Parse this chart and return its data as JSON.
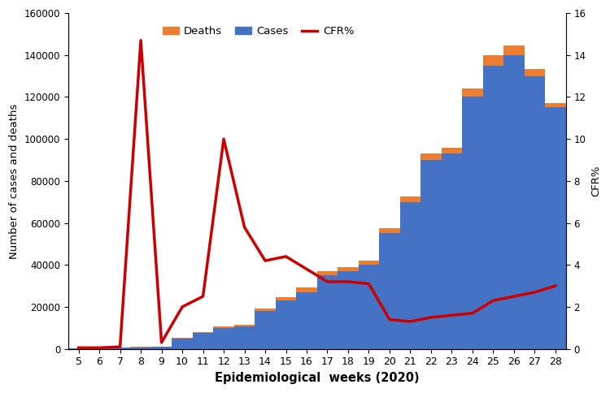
{
  "weeks": [
    5,
    6,
    7,
    8,
    9,
    10,
    11,
    12,
    13,
    14,
    15,
    16,
    17,
    18,
    19,
    20,
    21,
    22,
    23,
    24,
    25,
    26,
    27,
    28
  ],
  "cases": [
    200,
    300,
    500,
    800,
    1000,
    5000,
    7500,
    10000,
    10500,
    18000,
    23000,
    27000,
    35000,
    37000,
    40000,
    55000,
    70000,
    90000,
    93000,
    120000,
    135000,
    140000,
    130000,
    115000
  ],
  "deaths": [
    10,
    15,
    20,
    50,
    100,
    300,
    500,
    700,
    800,
    1200,
    1800,
    2200,
    2000,
    2000,
    2000,
    2500,
    2500,
    3000,
    3000,
    4000,
    5000,
    4500,
    3500,
    2000
  ],
  "cfr": [
    0.05,
    0.05,
    0.1,
    14.7,
    0.3,
    2.0,
    2.5,
    10.0,
    5.8,
    4.2,
    4.4,
    3.8,
    3.2,
    3.2,
    3.1,
    1.4,
    1.3,
    1.5,
    1.6,
    1.7,
    2.3,
    2.5,
    2.7,
    3.0
  ],
  "bar_color_cases": "#4472C4",
  "bar_color_deaths": "#ED7D31",
  "line_color": "#CC0000",
  "xlabel": "Epidemiological  weeks (2020)",
  "ylabel_left": "Number of cases and deaths",
  "ylabel_right": "CFR%",
  "ylim_left": [
    0,
    160000
  ],
  "ylim_right": [
    0,
    16
  ],
  "yticks_left": [
    0,
    20000,
    40000,
    60000,
    80000,
    100000,
    120000,
    140000,
    160000
  ],
  "yticks_right": [
    0,
    2,
    4,
    6,
    8,
    10,
    12,
    14,
    16
  ],
  "background_color": "#FFFFFF",
  "legend_deaths": "Deaths",
  "legend_cases": "Cases",
  "legend_cfr": "CFR%"
}
